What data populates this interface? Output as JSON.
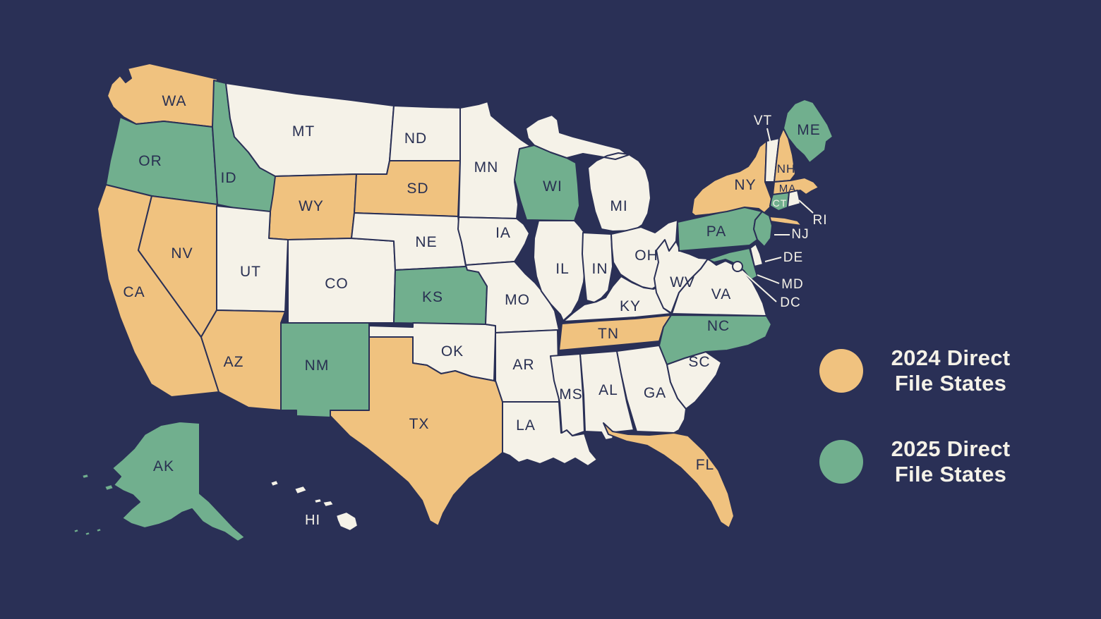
{
  "background_color": "#2A3056",
  "map": {
    "border_color": "#2A3056",
    "label_color_dark": "#293052",
    "label_color_light": "#F5F2E8",
    "category_colors": {
      "2024": "#F0C27F",
      "2025": "#71AF8E",
      "none": "#F5F2E8"
    },
    "states": [
      {
        "abbr": "WA",
        "category": "2024"
      },
      {
        "abbr": "OR",
        "category": "2025"
      },
      {
        "abbr": "CA",
        "category": "2024"
      },
      {
        "abbr": "NV",
        "category": "2024"
      },
      {
        "abbr": "ID",
        "category": "2025"
      },
      {
        "abbr": "MT",
        "category": "none"
      },
      {
        "abbr": "WY",
        "category": "2024"
      },
      {
        "abbr": "UT",
        "category": "none"
      },
      {
        "abbr": "CO",
        "category": "none"
      },
      {
        "abbr": "AZ",
        "category": "2024"
      },
      {
        "abbr": "NM",
        "category": "2025"
      },
      {
        "abbr": "ND",
        "category": "none"
      },
      {
        "abbr": "SD",
        "category": "2024"
      },
      {
        "abbr": "NE",
        "category": "none"
      },
      {
        "abbr": "KS",
        "category": "2025"
      },
      {
        "abbr": "OK",
        "category": "none"
      },
      {
        "abbr": "TX",
        "category": "2024"
      },
      {
        "abbr": "MN",
        "category": "none"
      },
      {
        "abbr": "IA",
        "category": "none"
      },
      {
        "abbr": "MO",
        "category": "none"
      },
      {
        "abbr": "AR",
        "category": "none"
      },
      {
        "abbr": "LA",
        "category": "none"
      },
      {
        "abbr": "WI",
        "category": "2025"
      },
      {
        "abbr": "IL",
        "category": "none"
      },
      {
        "abbr": "MI",
        "category": "none"
      },
      {
        "abbr": "IN",
        "category": "none"
      },
      {
        "abbr": "OH",
        "category": "none"
      },
      {
        "abbr": "KY",
        "category": "none"
      },
      {
        "abbr": "TN",
        "category": "2024"
      },
      {
        "abbr": "MS",
        "category": "none"
      },
      {
        "abbr": "AL",
        "category": "none"
      },
      {
        "abbr": "GA",
        "category": "none"
      },
      {
        "abbr": "FL",
        "category": "2024"
      },
      {
        "abbr": "SC",
        "category": "none"
      },
      {
        "abbr": "NC",
        "category": "2025"
      },
      {
        "abbr": "VA",
        "category": "none"
      },
      {
        "abbr": "WV",
        "category": "none"
      },
      {
        "abbr": "PA",
        "category": "2025"
      },
      {
        "abbr": "NY",
        "category": "2024"
      },
      {
        "abbr": "NJ",
        "category": "2025"
      },
      {
        "abbr": "DE",
        "category": "none"
      },
      {
        "abbr": "MD",
        "category": "2025"
      },
      {
        "abbr": "DC",
        "category": "none"
      },
      {
        "abbr": "VT",
        "category": "none"
      },
      {
        "abbr": "NH",
        "category": "2024"
      },
      {
        "abbr": "MA",
        "category": "2024"
      },
      {
        "abbr": "CT",
        "category": "2025"
      },
      {
        "abbr": "RI",
        "category": "none"
      },
      {
        "abbr": "ME",
        "category": "2025"
      },
      {
        "abbr": "AK",
        "category": "2025"
      },
      {
        "abbr": "HI",
        "category": "none"
      }
    ]
  },
  "legend": {
    "text_color": "#F5F2E8",
    "items": [
      {
        "category": "2024",
        "color": "#F0C27F",
        "line1": "2024 Direct",
        "line2": "File States"
      },
      {
        "category": "2025",
        "color": "#71AF8E",
        "line1": "2025 Direct",
        "line2": "File States"
      }
    ]
  }
}
